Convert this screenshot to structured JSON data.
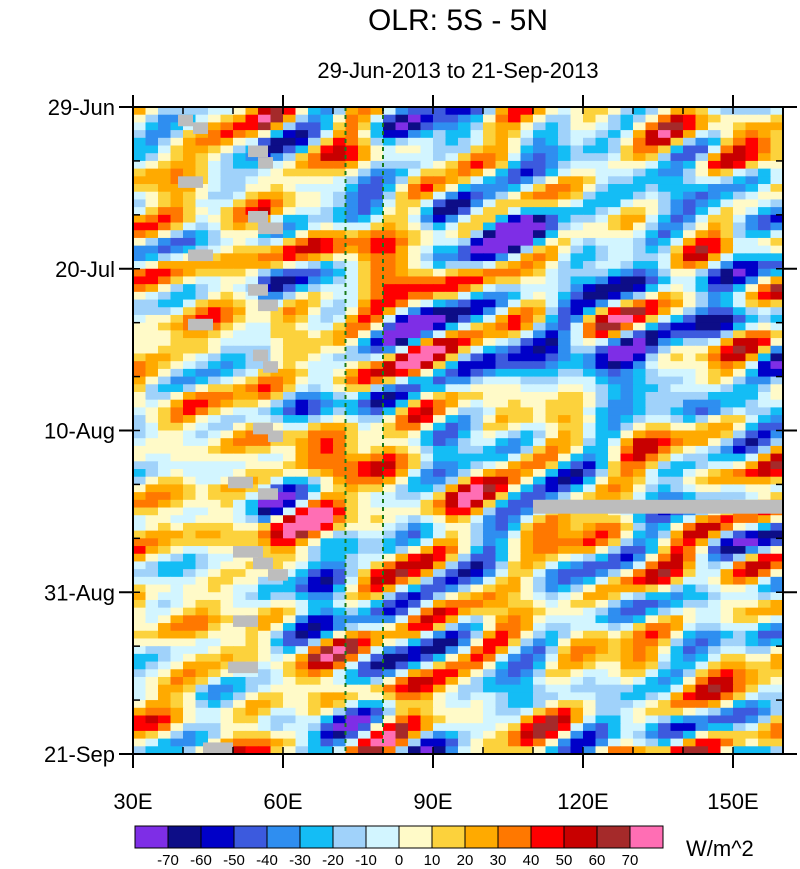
{
  "chart_data": {
    "type": "heatmap",
    "title": "OLR: 5S - 5N",
    "subtitle": "29-Jun-2013 to 21-Sep-2013",
    "x_axis": {
      "label": "",
      "range": [
        30,
        160
      ],
      "ticks": [
        {
          "value": 30,
          "label": "30E"
        },
        {
          "value": 60,
          "label": "60E"
        },
        {
          "value": 90,
          "label": "90E"
        },
        {
          "value": 120,
          "label": "120E"
        },
        {
          "value": 150,
          "label": "150E"
        }
      ],
      "minor_step": 10
    },
    "y_axis": {
      "label": "",
      "range_days": [
        0,
        84
      ],
      "reversed": true,
      "ticks": [
        {
          "value": 0,
          "label": "29-Jun"
        },
        {
          "value": 21,
          "label": "20-Jul"
        },
        {
          "value": 42,
          "label": "10-Aug"
        },
        {
          "value": 63,
          "label": "31-Aug"
        },
        {
          "value": 84,
          "label": "21-Sep"
        }
      ],
      "minor_step": 7
    },
    "reference_lines_lon": [
      72.5,
      80
    ],
    "missing_data_color": "#bdbdbd",
    "colorbar": {
      "units": "W/m^2",
      "labels": [
        "-70",
        "-60",
        "-50",
        "-40",
        "-30",
        "-20",
        "-10",
        "0",
        "10",
        "20",
        "30",
        "40",
        "50",
        "60",
        "70"
      ],
      "colors": [
        "#7e2ee6",
        "#0d0d87",
        "#0000c8",
        "#3c5ade",
        "#2f8ef0",
        "#14bdf5",
        "#a0d2fa",
        "#d2f5ff",
        "#fffac8",
        "#fcd23c",
        "#ffaa00",
        "#ff7800",
        "#ff0000",
        "#c80000",
        "#a52a2a",
        "#ff6eb4"
      ]
    },
    "anomaly_features": [
      {
        "lon": 80,
        "day": 21,
        "value": 55,
        "desc": "positive"
      },
      {
        "lon": 72,
        "day": 46,
        "value": 50,
        "desc": "positive"
      },
      {
        "lon": 72,
        "day": 54,
        "value": 55,
        "desc": "positive"
      },
      {
        "lon": 105,
        "day": 15,
        "value": -65,
        "desc": "negative"
      },
      {
        "lon": 125,
        "day": 32,
        "value": -60,
        "desc": "negative"
      },
      {
        "lon": 70,
        "day": 62,
        "value": -60,
        "desc": "negative"
      },
      {
        "lon": 85,
        "day": 3,
        "value": -55,
        "desc": "negative"
      },
      {
        "lon": 150,
        "day": 3,
        "value": 40,
        "desc": "positive"
      }
    ]
  }
}
